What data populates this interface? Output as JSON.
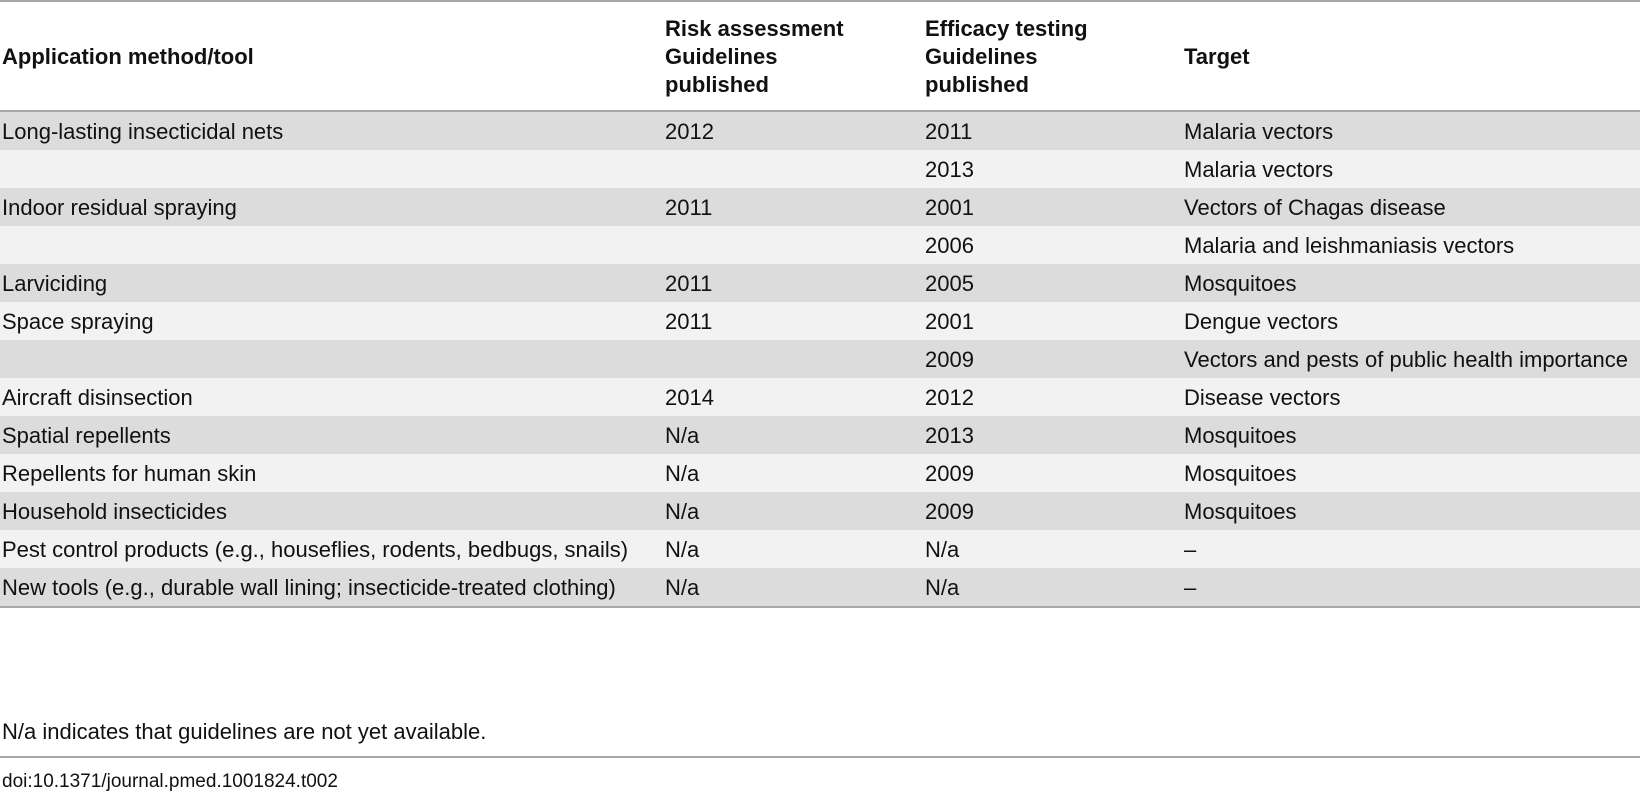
{
  "table": {
    "headers": [
      "Application method/tool",
      "Risk assessment\nGuidelines\npublished",
      "Efficacy testing\nGuidelines\npublished",
      "Target"
    ],
    "rows": [
      [
        "Long-lasting insecticidal nets",
        "2012",
        "2011",
        "Malaria vectors"
      ],
      [
        "",
        "",
        "2013",
        "Malaria vectors"
      ],
      [
        "Indoor residual spraying",
        "2011",
        "2001",
        "Vectors of Chagas disease"
      ],
      [
        "",
        "",
        "2006",
        "Malaria and leishmaniasis vectors"
      ],
      [
        "Larviciding",
        "2011",
        "2005",
        "Mosquitoes"
      ],
      [
        "Space spraying",
        "2011",
        "2001",
        "Dengue vectors"
      ],
      [
        "",
        "",
        "2009",
        "Vectors and pests of public health importance"
      ],
      [
        "Aircraft disinsection",
        "2014",
        "2012",
        "Disease vectors"
      ],
      [
        "Spatial repellents",
        "N/a",
        "2013",
        "Mosquitoes"
      ],
      [
        "Repellents for human skin",
        "N/a",
        "2009",
        "Mosquitoes"
      ],
      [
        "Household insecticides",
        "N/a",
        "2009",
        "Mosquitoes"
      ],
      [
        "Pest control products (e.g., houseflies, rodents, bedbugs, snails)",
        "N/a",
        "N/a",
        "–"
      ],
      [
        "New tools (e.g., durable wall lining; insecticide-treated clothing)",
        "N/a",
        "N/a",
        "–"
      ]
    ]
  },
  "footnote": "N/a indicates that guidelines are not yet available.",
  "doi": "doi:10.1371/journal.pmed.1001824.t002",
  "colors": {
    "shaded_row": "#dcdcdc",
    "light_row": "#f2f2f2",
    "rule": "#a8a8a8"
  }
}
